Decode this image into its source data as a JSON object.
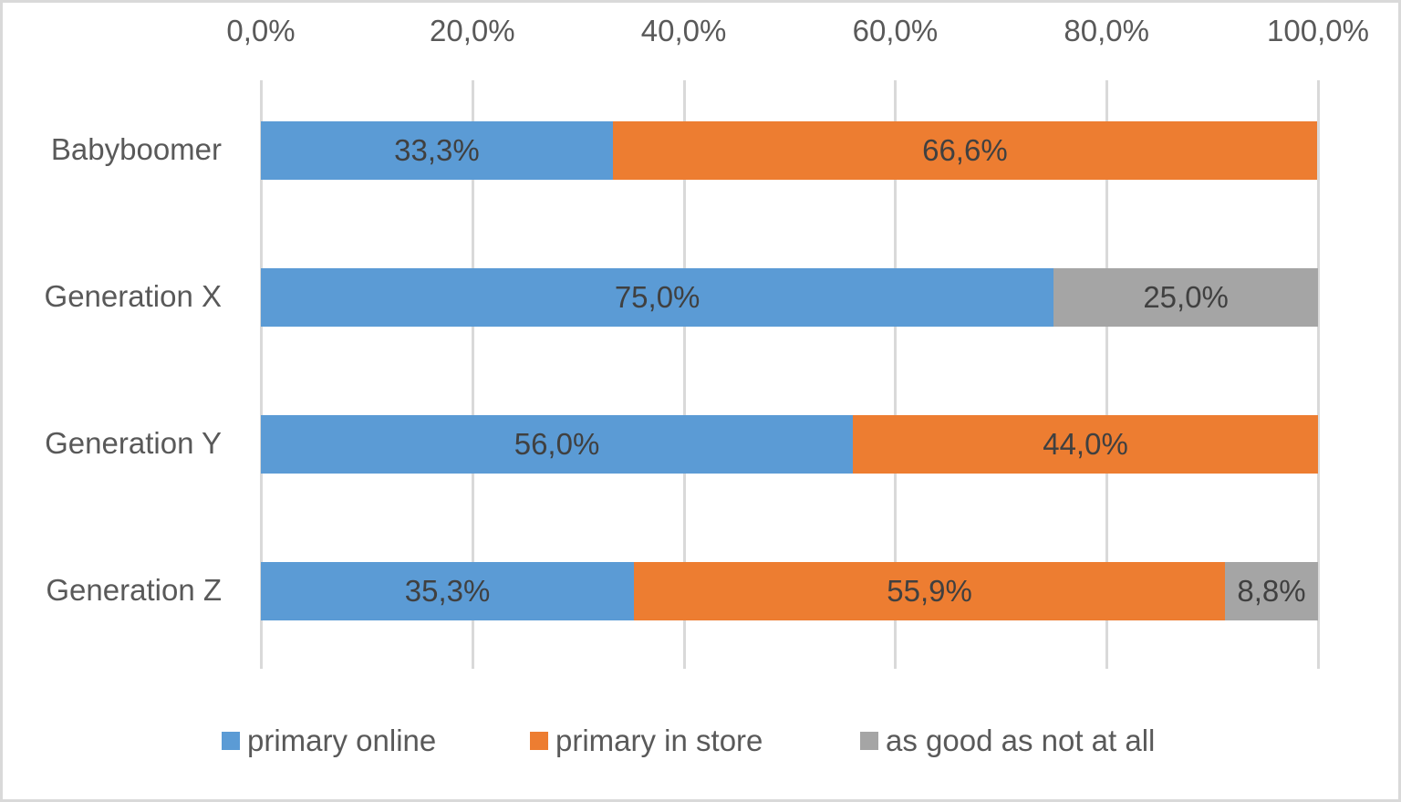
{
  "chart_data": {
    "type": "bar",
    "orientation": "horizontal",
    "stacked": "100%",
    "title": "",
    "xlabel": "",
    "ylabel": "",
    "xlim": [
      0,
      100
    ],
    "x_ticks": [
      "0,0%",
      "20,0%",
      "40,0%",
      "60,0%",
      "80,0%",
      "100,0%"
    ],
    "x_tick_values": [
      0,
      20,
      40,
      60,
      80,
      100
    ],
    "axis_position": "top",
    "grid": true,
    "legend_position": "bottom",
    "categories": [
      "Babyboomer",
      "Generation X",
      "Generation Y",
      "Generation Z"
    ],
    "series": [
      {
        "name": "primary online",
        "color": "#5b9bd5",
        "values": [
          33.3,
          75.0,
          56.0,
          35.3
        ],
        "labels": [
          "33,3%",
          "75,0%",
          "56,0%",
          "35,3%"
        ]
      },
      {
        "name": "primary in store",
        "color": "#ed7d31",
        "values": [
          66.6,
          0,
          44.0,
          55.9
        ],
        "labels": [
          "66,6%",
          "",
          "44,0%",
          "55,9%"
        ]
      },
      {
        "name": "as good as not at all",
        "color": "#a5a5a5",
        "values": [
          0,
          25.0,
          0,
          8.8
        ],
        "labels": [
          "",
          "25,0%",
          "",
          "8,8%"
        ]
      }
    ]
  },
  "axis": {
    "ticks": [
      "0,0%",
      "20,0%",
      "40,0%",
      "60,0%",
      "80,0%",
      "100,0%"
    ]
  },
  "categories": [
    "Babyboomer",
    "Generation X",
    "Generation Y",
    "Generation Z"
  ],
  "legend": {
    "items": [
      {
        "label": "primary online",
        "color": "#5b9bd5"
      },
      {
        "label": "primary in store",
        "color": "#ed7d31"
      },
      {
        "label": "as good as not at all",
        "color": "#a5a5a5"
      }
    ]
  }
}
